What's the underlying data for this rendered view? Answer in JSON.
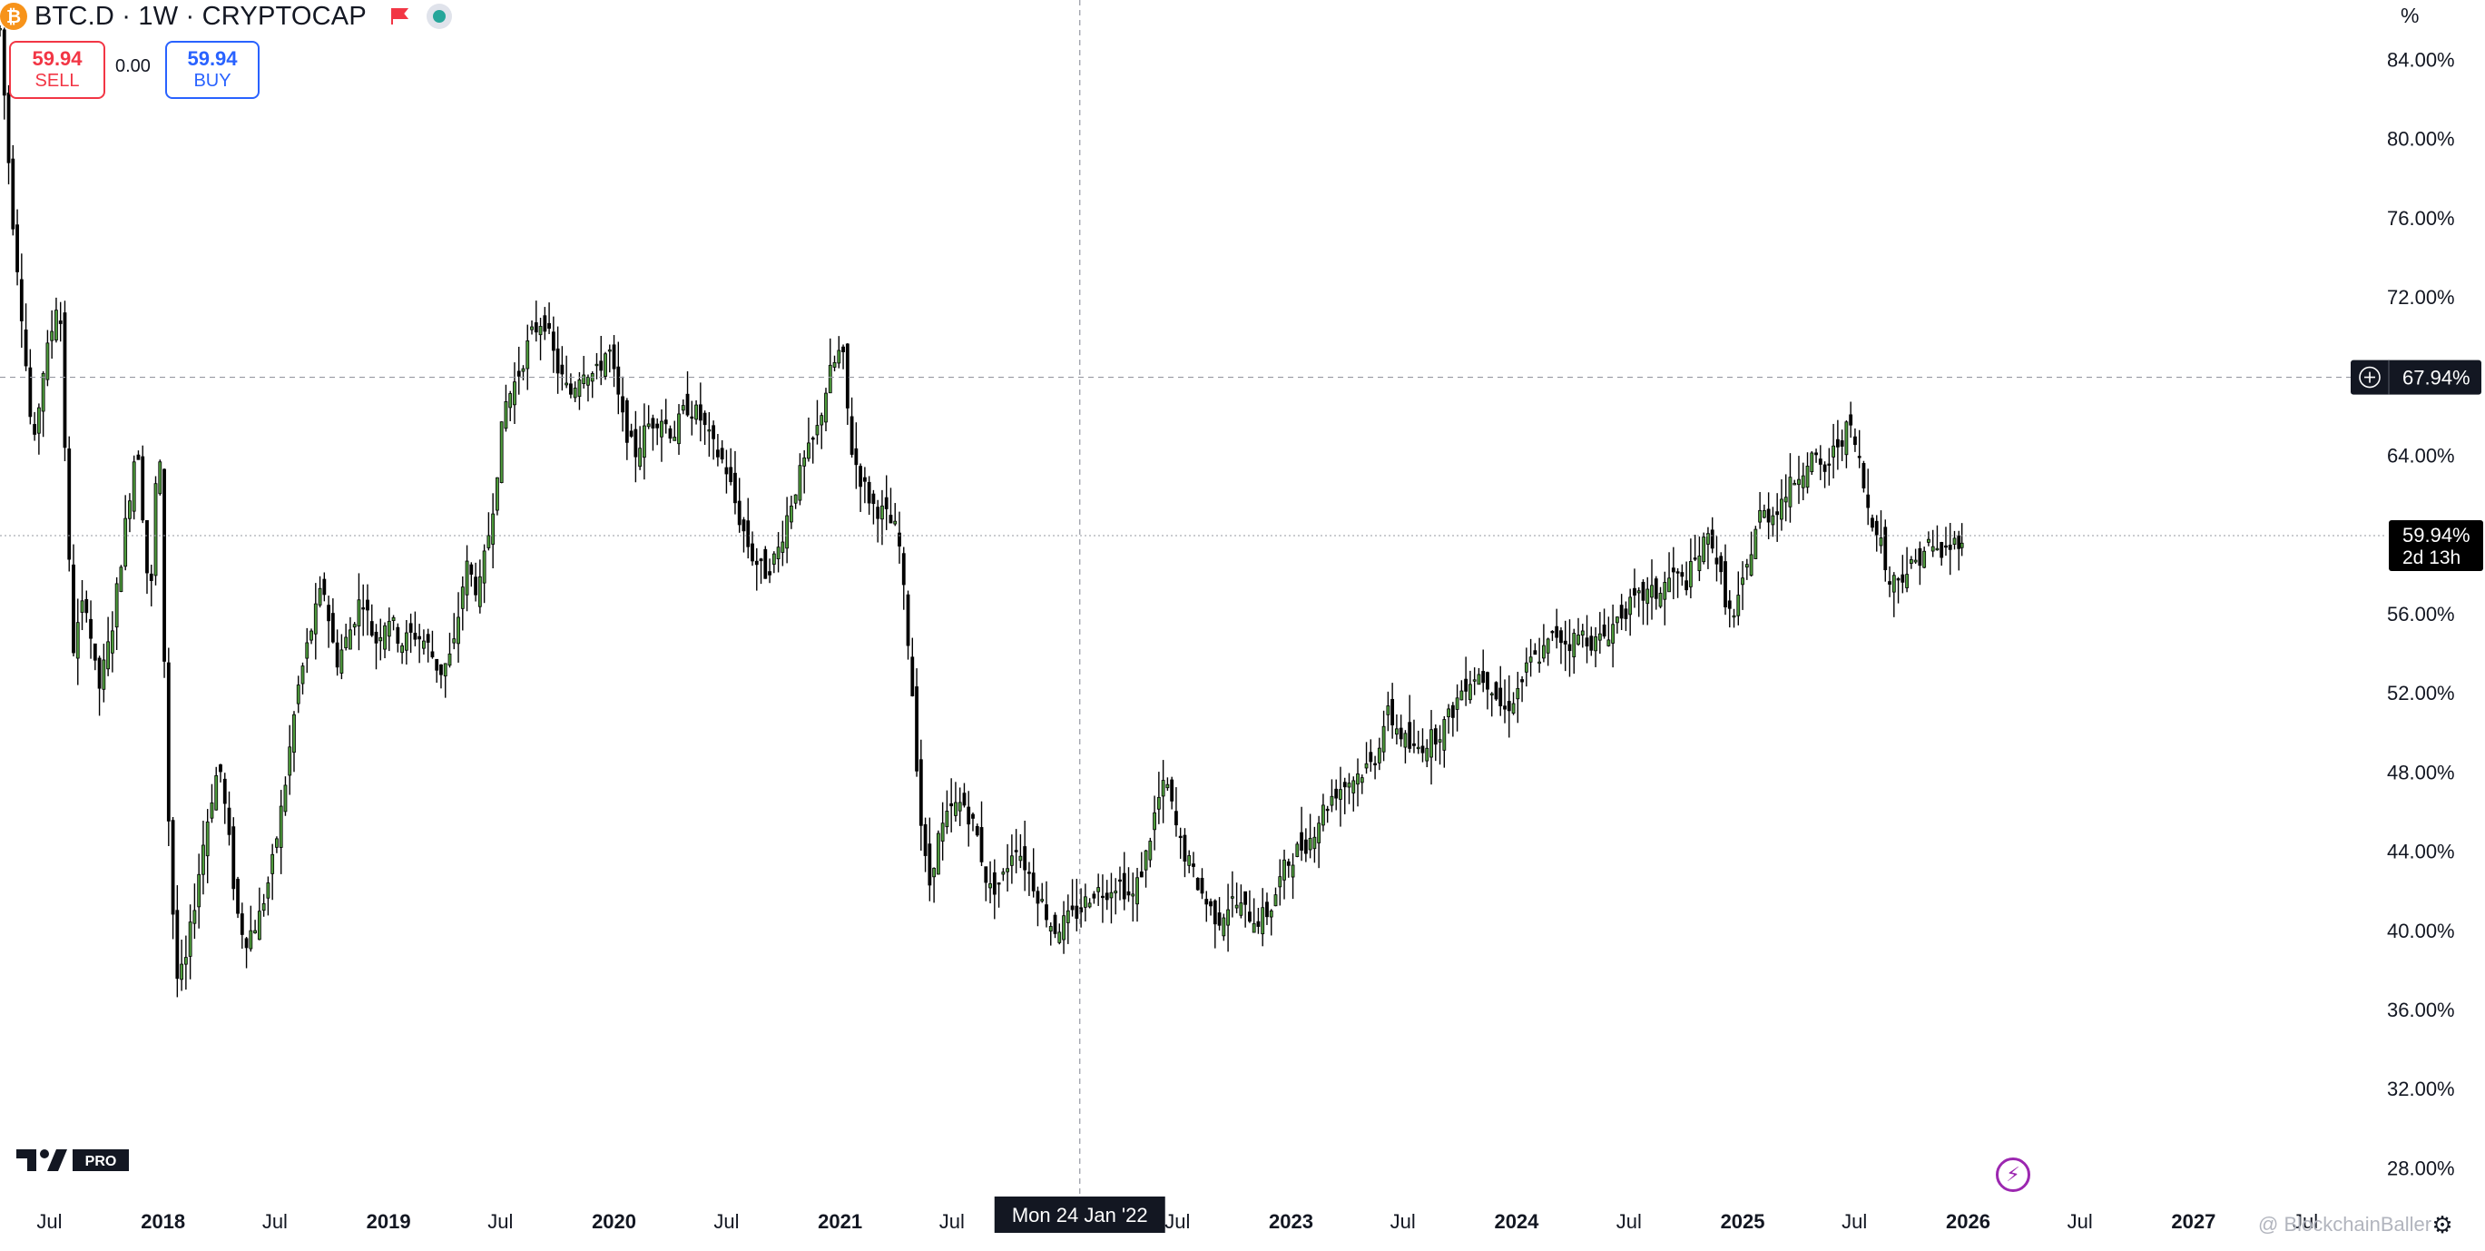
{
  "header": {
    "coin_letter": "₿",
    "symbol": "BTC.D · 1W · CRYPTOCAP"
  },
  "trade": {
    "sell_price": "59.94",
    "sell_label": "SELL",
    "spread": "0.00",
    "buy_price": "59.94",
    "buy_label": "BUY"
  },
  "price_scale_unit": "%",
  "crosshair": {
    "date_label": "Mon 24 Jan '22",
    "price_label": "67.94%"
  },
  "last_price": {
    "value_label": "59.94%",
    "countdown": "2d 13h"
  },
  "logo": {
    "badge": "PRO"
  },
  "watermark": "@ BlockchainBaller",
  "colors": {
    "up_candle": "#4e9c3c",
    "down_candle": "#000000",
    "crosshair_label_bg": "#131722",
    "sell": "#f23645",
    "buy": "#2962ff",
    "status_dot": "#26a69a",
    "bitcoin": "#f7931a"
  },
  "icons": [
    "bitcoin-icon",
    "red-flag-icon",
    "market-status-icon",
    "plus-circle-icon",
    "lightning-icon",
    "settings-icon",
    "tradingview-logo"
  ],
  "chart_data": {
    "type": "candlestick",
    "title": "BTC.D · 1W · CRYPTOCAP",
    "interval": "1W",
    "ylabel": "%",
    "ylim": [
      26,
      87
    ],
    "y_ticks": [
      84,
      80,
      76,
      72,
      64,
      56,
      52,
      48,
      44,
      40,
      36,
      32,
      28
    ],
    "y_tick_labels": [
      "84.00%",
      "80.00%",
      "76.00%",
      "72.00%",
      "64.00%",
      "56.00%",
      "52.00%",
      "48.00%",
      "44.00%",
      "40.00%",
      "36.00%",
      "32.00%",
      "28.00%"
    ],
    "x_tick_labels": [
      "Jul",
      "2018",
      "Jul",
      "2019",
      "Jul",
      "2020",
      "Jul",
      "2021",
      "Jul",
      "Mon 24 Jan '22",
      "Jul",
      "2023",
      "Jul",
      "2024",
      "Jul",
      "2025",
      "Jul",
      "2026",
      "Jul",
      "2027",
      "Jul"
    ],
    "x_ticks": [
      "2017-07-01",
      "2018-01-01",
      "2018-07-01",
      "2019-01-01",
      "2019-07-01",
      "2020-01-01",
      "2020-07-01",
      "2021-01-01",
      "2021-07-01",
      "2022-01-24",
      "2022-07-01",
      "2023-01-01",
      "2023-07-01",
      "2024-01-01",
      "2024-07-01",
      "2025-01-01",
      "2025-07-01",
      "2026-01-01",
      "2026-07-01",
      "2027-01-01",
      "2027-07-01"
    ],
    "x_tick_bold": [
      false,
      true,
      false,
      true,
      false,
      true,
      false,
      true,
      false,
      false,
      false,
      true,
      false,
      true,
      false,
      true,
      false,
      true,
      false,
      true,
      false
    ],
    "xlim": [
      "2017-04-12",
      "2027-09-27"
    ],
    "crosshair_price": 67.94,
    "last_price": 59.94,
    "grid": false,
    "series": [
      {
        "name": "BTC.D",
        "points": [
          [
            "2017-04-12",
            85.5
          ],
          [
            "2017-05-01",
            76.5
          ],
          [
            "2017-05-15",
            72.0
          ],
          [
            "2017-06-05",
            64.0
          ],
          [
            "2017-06-19",
            68.0
          ],
          [
            "2017-07-03",
            70.0
          ],
          [
            "2017-07-17",
            72.5
          ],
          [
            "2017-08-07",
            54.0
          ],
          [
            "2017-08-28",
            57.0
          ],
          [
            "2017-09-18",
            52.0
          ],
          [
            "2017-10-09",
            55.0
          ],
          [
            "2017-10-30",
            60.0
          ],
          [
            "2017-11-20",
            65.0
          ],
          [
            "2017-12-11",
            56.0
          ],
          [
            "2017-12-25",
            66.0
          ],
          [
            "2018-01-08",
            47.0
          ],
          [
            "2018-01-22",
            37.5
          ],
          [
            "2018-02-05",
            38.0
          ],
          [
            "2018-02-19",
            41.0
          ],
          [
            "2018-03-05",
            44.0
          ],
          [
            "2018-03-19",
            46.5
          ],
          [
            "2018-04-02",
            48.5
          ],
          [
            "2018-04-16",
            45.0
          ],
          [
            "2018-04-30",
            41.0
          ],
          [
            "2018-05-14",
            39.5
          ],
          [
            "2018-06-04",
            40.5
          ],
          [
            "2018-06-25",
            43.0
          ],
          [
            "2018-07-16",
            47.0
          ],
          [
            "2018-08-06",
            52.0
          ],
          [
            "2018-08-27",
            55.0
          ],
          [
            "2018-09-17",
            57.5
          ],
          [
            "2018-10-08",
            53.5
          ],
          [
            "2018-10-29",
            55.0
          ],
          [
            "2018-11-19",
            57.0
          ],
          [
            "2018-12-10",
            54.5
          ],
          [
            "2018-12-31",
            56.0
          ],
          [
            "2019-01-21",
            54.5
          ],
          [
            "2019-02-11",
            55.0
          ],
          [
            "2019-03-04",
            54.5
          ],
          [
            "2019-03-25",
            53.0
          ],
          [
            "2019-04-15",
            54.0
          ],
          [
            "2019-05-06",
            58.5
          ],
          [
            "2019-05-27",
            57.0
          ],
          [
            "2019-06-17",
            61.0
          ],
          [
            "2019-07-08",
            66.5
          ],
          [
            "2019-07-29",
            68.0
          ],
          [
            "2019-08-19",
            70.0
          ],
          [
            "2019-09-09",
            71.0
          ],
          [
            "2019-09-30",
            68.5
          ],
          [
            "2019-10-21",
            67.0
          ],
          [
            "2019-11-11",
            68.5
          ],
          [
            "2019-12-02",
            68.0
          ],
          [
            "2019-12-23",
            69.5
          ],
          [
            "2020-01-13",
            66.0
          ],
          [
            "2020-02-03",
            64.0
          ],
          [
            "2020-02-24",
            65.5
          ],
          [
            "2020-03-16",
            66.0
          ],
          [
            "2020-04-06",
            65.0
          ],
          [
            "2020-04-27",
            66.5
          ],
          [
            "2020-05-18",
            66.0
          ],
          [
            "2020-06-08",
            64.5
          ],
          [
            "2020-06-29",
            63.5
          ],
          [
            "2020-07-20",
            61.0
          ],
          [
            "2020-08-10",
            59.0
          ],
          [
            "2020-08-31",
            58.0
          ],
          [
            "2020-09-21",
            59.0
          ],
          [
            "2020-10-12",
            61.5
          ],
          [
            "2020-11-02",
            63.5
          ],
          [
            "2020-11-23",
            65.0
          ],
          [
            "2020-12-14",
            68.0
          ],
          [
            "2021-01-04",
            69.5
          ],
          [
            "2021-01-18",
            64.5
          ],
          [
            "2021-02-01",
            63.0
          ],
          [
            "2021-02-22",
            61.5
          ],
          [
            "2021-03-15",
            61.0
          ],
          [
            "2021-04-05",
            60.0
          ],
          [
            "2021-04-26",
            53.0
          ],
          [
            "2021-05-10",
            46.0
          ],
          [
            "2021-05-24",
            42.0
          ],
          [
            "2021-06-07",
            44.5
          ],
          [
            "2021-06-28",
            46.0
          ],
          [
            "2021-07-19",
            46.5
          ],
          [
            "2021-08-09",
            45.0
          ],
          [
            "2021-08-30",
            42.0
          ],
          [
            "2021-09-20",
            42.5
          ],
          [
            "2021-10-11",
            44.5
          ],
          [
            "2021-11-01",
            43.0
          ],
          [
            "2021-11-22",
            41.5
          ],
          [
            "2021-12-13",
            40.0
          ],
          [
            "2022-01-03",
            40.5
          ],
          [
            "2022-01-24",
            41.0
          ],
          [
            "2022-02-14",
            42.0
          ],
          [
            "2022-03-07",
            42.0
          ],
          [
            "2022-03-28",
            42.5
          ],
          [
            "2022-04-18",
            41.5
          ],
          [
            "2022-05-09",
            43.5
          ],
          [
            "2022-05-30",
            46.5
          ],
          [
            "2022-06-13",
            47.5
          ],
          [
            "2022-07-04",
            44.5
          ],
          [
            "2022-07-25",
            43.0
          ],
          [
            "2022-08-15",
            41.5
          ],
          [
            "2022-09-05",
            40.5
          ],
          [
            "2022-09-26",
            41.5
          ],
          [
            "2022-10-17",
            41.0
          ],
          [
            "2022-11-07",
            40.5
          ],
          [
            "2022-11-28",
            41.0
          ],
          [
            "2022-12-19",
            43.0
          ],
          [
            "2023-01-09",
            44.0
          ],
          [
            "2023-01-30",
            44.5
          ],
          [
            "2023-02-20",
            46.0
          ],
          [
            "2023-03-13",
            47.0
          ],
          [
            "2023-04-03",
            47.5
          ],
          [
            "2023-04-24",
            48.0
          ],
          [
            "2023-05-15",
            48.5
          ],
          [
            "2023-06-05",
            51.0
          ],
          [
            "2023-06-26",
            50.0
          ],
          [
            "2023-07-17",
            49.0
          ],
          [
            "2023-08-07",
            49.5
          ],
          [
            "2023-08-28",
            50.0
          ],
          [
            "2023-09-18",
            51.0
          ],
          [
            "2023-10-09",
            52.5
          ],
          [
            "2023-10-30",
            53.0
          ],
          [
            "2023-11-20",
            52.5
          ],
          [
            "2023-12-11",
            51.0
          ],
          [
            "2024-01-01",
            52.0
          ],
          [
            "2024-01-22",
            53.5
          ],
          [
            "2024-02-12",
            54.0
          ],
          [
            "2024-03-04",
            55.0
          ],
          [
            "2024-03-25",
            54.5
          ],
          [
            "2024-04-15",
            55.0
          ],
          [
            "2024-05-06",
            54.5
          ],
          [
            "2024-05-27",
            55.0
          ],
          [
            "2024-06-17",
            56.0
          ],
          [
            "2024-07-08",
            56.5
          ],
          [
            "2024-07-29",
            57.0
          ],
          [
            "2024-08-19",
            57.0
          ],
          [
            "2024-09-09",
            58.0
          ],
          [
            "2024-09-30",
            57.5
          ],
          [
            "2024-10-21",
            59.0
          ],
          [
            "2024-11-11",
            60.0
          ],
          [
            "2024-12-02",
            57.0
          ],
          [
            "2024-12-16",
            55.5
          ],
          [
            "2025-01-06",
            58.0
          ],
          [
            "2025-01-27",
            61.0
          ],
          [
            "2025-02-17",
            61.0
          ],
          [
            "2025-03-10",
            62.0
          ],
          [
            "2025-03-31",
            63.0
          ],
          [
            "2025-04-21",
            64.0
          ],
          [
            "2025-05-12",
            63.0
          ],
          [
            "2025-06-02",
            64.5
          ],
          [
            "2025-06-23",
            65.5
          ],
          [
            "2025-07-07",
            64.0
          ],
          [
            "2025-07-21",
            61.5
          ],
          [
            "2025-08-11",
            60.0
          ],
          [
            "2025-08-25",
            57.5
          ],
          [
            "2025-09-15",
            58.0
          ],
          [
            "2025-10-06",
            58.5
          ],
          [
            "2025-10-27",
            59.5
          ],
          [
            "2025-11-17",
            59.0
          ],
          [
            "2025-12-08",
            59.5
          ],
          [
            "2025-12-22",
            59.94
          ]
        ]
      }
    ]
  }
}
